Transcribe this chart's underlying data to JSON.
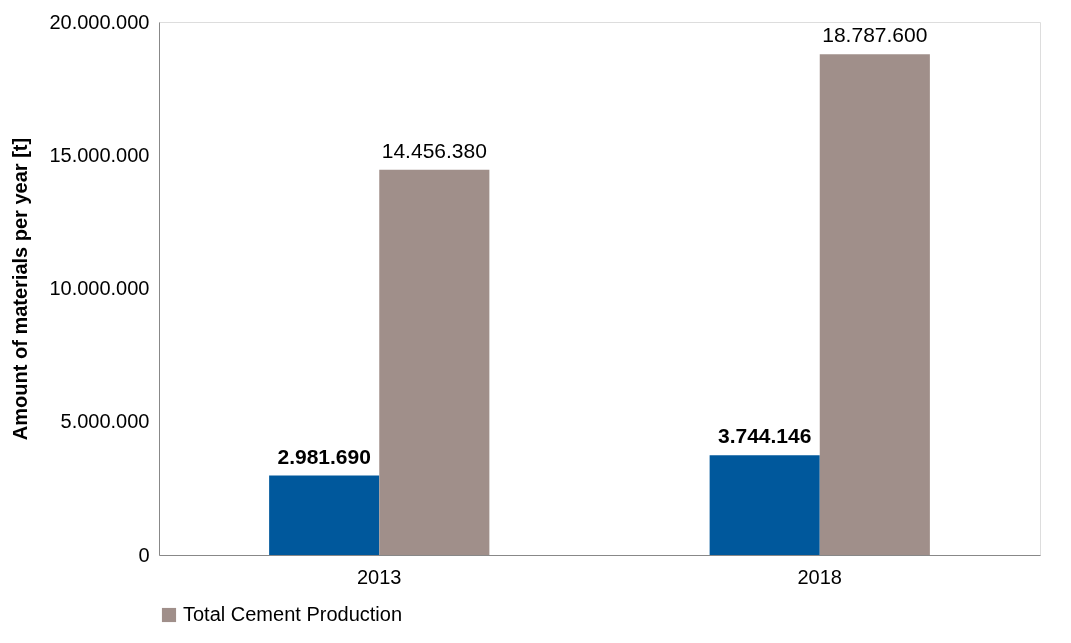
{
  "chart_data": {
    "type": "bar",
    "ylabel": "Amount of materials per year [t]",
    "categories": [
      "2013",
      "2018"
    ],
    "series": [
      {
        "color": "#00589c",
        "values": [
          2981690,
          3744146
        ],
        "value_labels": [
          "2.981.690",
          "3.744.146"
        ]
      },
      {
        "name": "Total Cement Production",
        "color": "#a08f8a",
        "values": [
          14456380,
          18787600
        ],
        "value_labels": [
          "14.456.380",
          "18.787.600"
        ]
      }
    ],
    "ylim": [
      0,
      20000000
    ],
    "yticks": [
      {
        "value": 0,
        "label": "0"
      },
      {
        "value": 5000000,
        "label": "5.000.000"
      },
      {
        "value": 10000000,
        "label": "10.000.000"
      },
      {
        "value": 15000000,
        "label": "15.000.000"
      },
      {
        "value": 20000000,
        "label": "20.000.000"
      }
    ],
    "grid": false,
    "legend": "bottom"
  }
}
